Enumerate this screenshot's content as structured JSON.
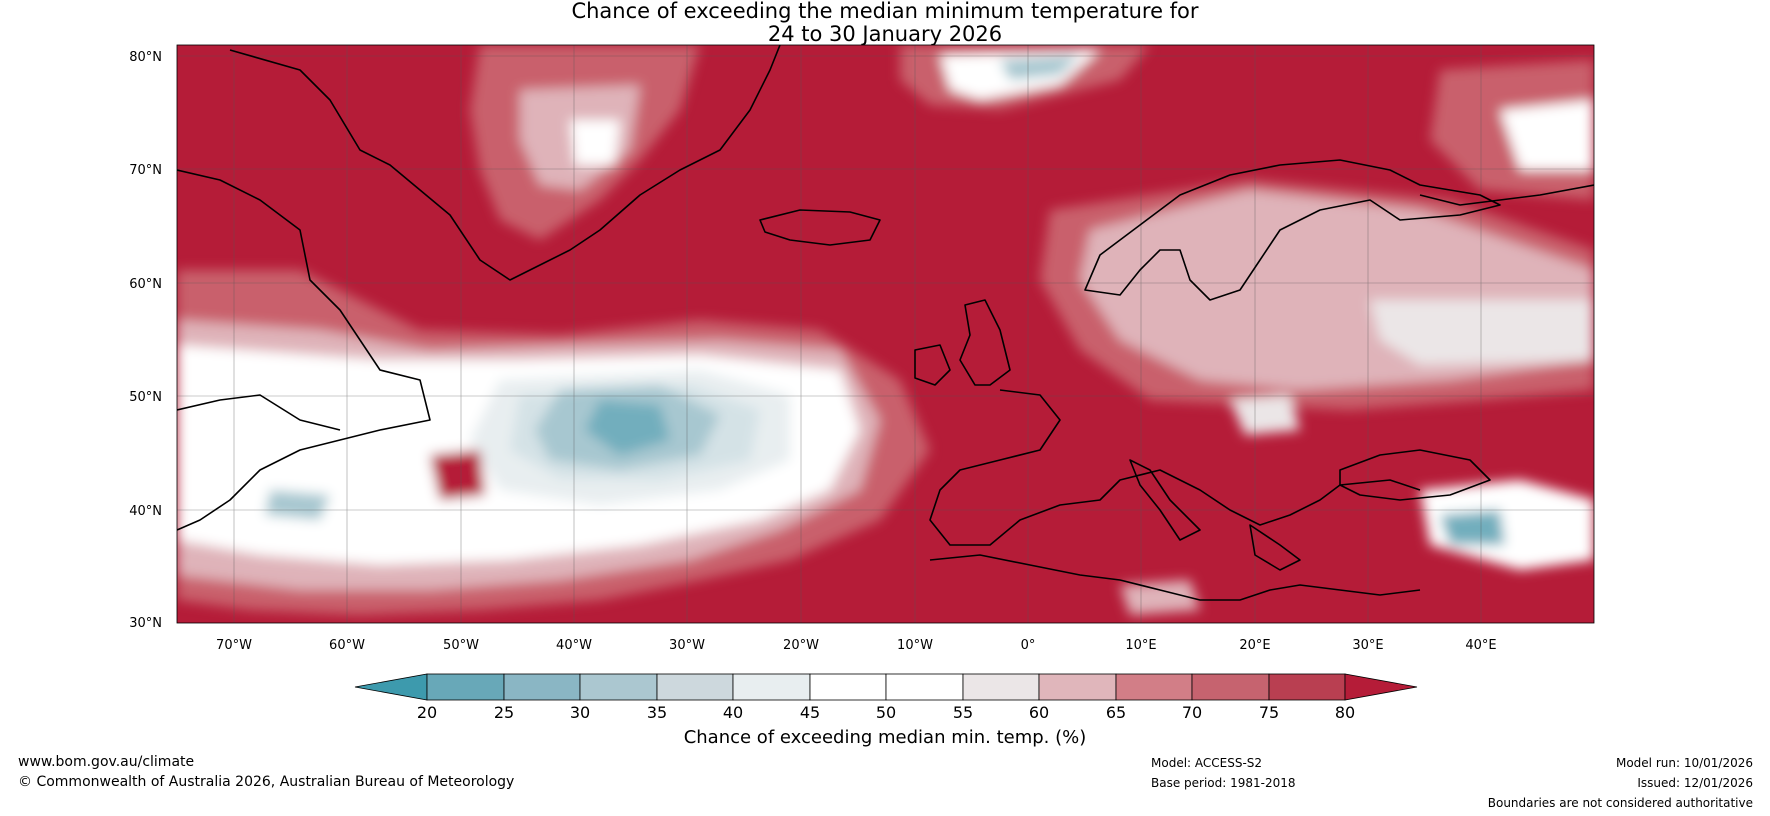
{
  "title": {
    "line1": "Chance of exceeding the median minimum temperature for",
    "line2": "24 to 30 January 2026"
  },
  "map": {
    "lat_labels": [
      "80°N",
      "70°N",
      "60°N",
      "50°N",
      "40°N",
      "30°N"
    ],
    "lon_labels": [
      "70°W",
      "60°W",
      "50°W",
      "40°W",
      "30°W",
      "20°W",
      "10°W",
      "0°",
      "10°E",
      "20°E",
      "30°E",
      "40°E"
    ],
    "extent": {
      "lon_min": -75,
      "lon_max": 50,
      "lat_min": 30,
      "lat_max": 81
    }
  },
  "colorbar": {
    "ticks": [
      "20",
      "25",
      "30",
      "35",
      "40",
      "45",
      "50",
      "55",
      "60",
      "65",
      "70",
      "75",
      "80"
    ],
    "colors": [
      "#3d9aad",
      "#68a8b8",
      "#8ab6c4",
      "#abc7d0",
      "#cdd8dd",
      "#e8eef0",
      "#ffffff",
      "#ffffff",
      "#ebe6e7",
      "#e0b6bb",
      "#d27e87",
      "#c6636f",
      "#b93f51"
    ],
    "label": "Chance of exceeding median min. temp. (%)",
    "low_color": "#3d9aad",
    "high_color": "#b51c38"
  },
  "palette": {
    "deep_red": "#b51c38",
    "mid_red": "#c9606c",
    "light_red": "#dfb3b9",
    "white": "#ffffff",
    "pale_blue": "#d4e2e6",
    "mid_blue": "#a7c7d0",
    "dark_blue": "#72aebd"
  },
  "footer": {
    "website": "www.bom.gov.au/climate",
    "copyright": "© Commonwealth of Australia 2026, Australian Bureau of Meteorology",
    "model": "Model: ACCESS-S2",
    "base_period": "Base period: 1981-2018",
    "model_run": "Model run: 10/01/2026",
    "issued": "Issued: 12/01/2026",
    "disclaimer": "Boundaries are not considered authoritative"
  }
}
